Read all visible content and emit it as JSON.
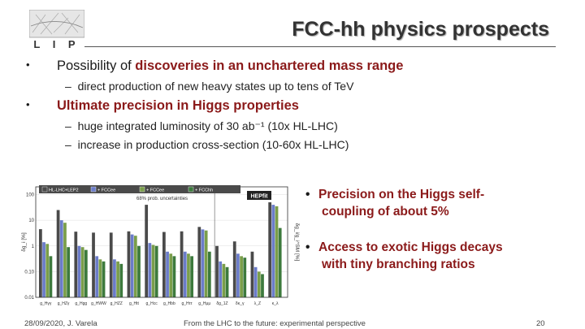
{
  "slide": {
    "title": "FCC-hh physics prospects",
    "logo_text": "L I P",
    "bullets": [
      {
        "pre": "Possibility of ",
        "em": "discoveries in an unchartered mass range",
        "post": ""
      },
      {
        "pre": "",
        "em": "Ultimate precision in Higgs properties",
        "post": ""
      }
    ],
    "subbullets": [
      "direct production of new heavy states up to tens of TeV",
      "huge integrated luminosity of 30 ab⁻¹ (10x HL-LHC)",
      "increase in production cross-section (10-60x HL-LHC)"
    ],
    "side_points": [
      {
        "line1": "Precision on the Higgs self-",
        "line2": "coupling of about 5%"
      },
      {
        "line1": "Access to exotic Higgs decays",
        "line2": "with tiny branching ratios"
      }
    ],
    "footer": {
      "left": "28/09/2020, J. Varela",
      "center": "From the LHC to the future: experimental perspective",
      "page": "20"
    },
    "colors": {
      "accent": "#8b1a1a"
    }
  },
  "chart_data": {
    "type": "bar",
    "legend_labels": [
      "HL-LHC+LEP2",
      "+ FCCee",
      "+ FCCee",
      "+ FCChh"
    ],
    "series_colors": [
      "#4a4a4a",
      "#6b7cc9",
      "#7a9e4a",
      "#3d7a3d"
    ],
    "note": "68% prob. uncertainties",
    "badge": "HEPfit",
    "ylabel": "δg_i [%]",
    "ylabel_right": "δg_i/g_i^SM [%]",
    "yticks": [
      "100",
      "10",
      "1",
      "0.10",
      "0.01"
    ],
    "yscale": "log",
    "ylim": [
      0.01,
      200
    ],
    "categories": [
      "g_Hγγ",
      "g_HZγ",
      "g_Hgg",
      "g_HWW",
      "g_HZZ",
      "g_Htt",
      "g_Hcc",
      "g_Hbb",
      "g_Hττ",
      "g_Hμμ",
      "δg_1Z",
      "δκ_γ",
      "λ_Z",
      "κ_λ"
    ],
    "series": [
      {
        "values": [
          4.5,
          25,
          3.6,
          3.3,
          3.3,
          3.7,
          40,
          3.5,
          3.7,
          5.5,
          1.0,
          1.5,
          0.6,
          50
        ]
      },
      {
        "values": [
          1.4,
          10,
          1.0,
          0.4,
          0.3,
          2.8,
          1.3,
          0.6,
          0.6,
          4.4,
          0.25,
          0.5,
          0.15,
          40
        ]
      },
      {
        "values": [
          1.2,
          8,
          0.9,
          0.3,
          0.25,
          2.5,
          1.1,
          0.5,
          0.5,
          4.0,
          0.2,
          0.4,
          0.1,
          35
        ]
      },
      {
        "values": [
          0.4,
          0.9,
          0.7,
          0.25,
          0.2,
          1.0,
          1.0,
          0.4,
          0.4,
          0.6,
          0.15,
          0.35,
          0.08,
          5
        ]
      }
    ]
  }
}
